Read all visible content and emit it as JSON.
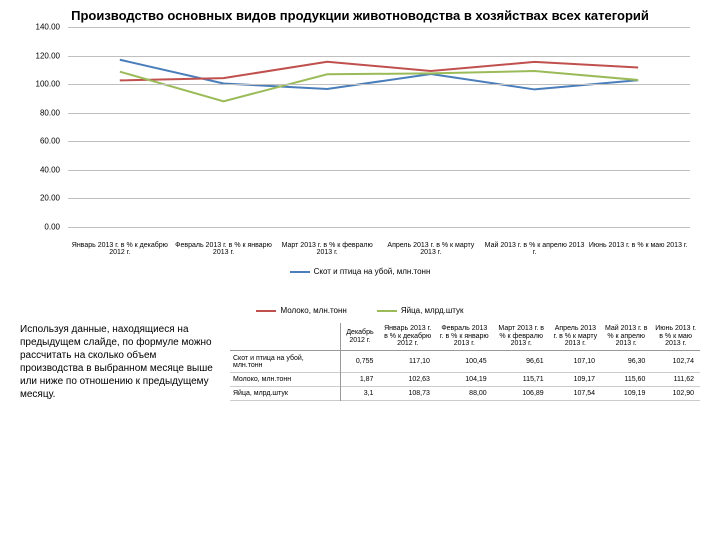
{
  "title": "Производство основных видов продукции животноводства\nв хозяйствах всех категорий",
  "chart": {
    "type": "line",
    "ylim": [
      0,
      140
    ],
    "ytick_step": 20,
    "yticks": [
      "0.00",
      "20.00",
      "40.00",
      "60.00",
      "80.00",
      "100.00",
      "120.00",
      "140.00"
    ],
    "grid_color": "#bfbfbf",
    "background_color": "#ffffff",
    "line_width": 2,
    "categories": [
      "Январь 2013 г. в % к декабрю 2012 г.",
      "Февраль 2013 г. в % к январю 2013 г.",
      "Март 2013 г. в % к февралю 2013 г.",
      "Апрель 2013 г. в % к марту 2013 г.",
      "Май 2013 г. в % к апрелю 2013 г.",
      "Июнь 2013 г. в % к маю 2013 г."
    ],
    "series": [
      {
        "name": "Скот и птица на убой, млн.тонн",
        "color": "#4a7ebb",
        "values": [
          117.1,
          100.45,
          96.61,
          107.1,
          96.3,
          102.74
        ]
      },
      {
        "name": "Молоко, млн.тонн",
        "color": "#c0504d",
        "values": [
          102.63,
          104.19,
          115.71,
          109.17,
          115.6,
          111.62
        ]
      },
      {
        "name": "Яйца, млрд.штук",
        "color": "#9bbb59",
        "values": [
          108.73,
          88.0,
          106.89,
          107.54,
          109.19,
          102.9
        ]
      }
    ]
  },
  "legend": {
    "row1": [
      {
        "label": "Скот и птица на убой, млн.тонн",
        "color": "#4a7ebb"
      }
    ],
    "row2": [
      {
        "label": "Молоко, млн.тонн",
        "color": "#c0504d"
      },
      {
        "label": "Яйца, млрд.штук",
        "color": "#9bbb59"
      }
    ]
  },
  "instruction": "Используя данные, находящиеся на предыдущем слайде, по формуле можно рассчитать на сколько объем производства в выбранном месяце выше или ниже по отношению к предыдущему месяцу.",
  "table": {
    "columns": [
      "",
      "Декабрь 2012 г.",
      "Январь 2013 г. в % к декабрю 2012 г.",
      "Февраль 2013 г. в % к январю 2013 г.",
      "Март 2013 г. в % к февралю 2013 г.",
      "Апрель 2013 г. в % к марту 2013 г.",
      "Май 2013 г. в % к апрелю 2013 г.",
      "Июнь 2013 г. в % к маю 2013 г."
    ],
    "rows": [
      [
        "Скот и птица на убой, млн.тонн",
        "0,755",
        "117,10",
        "100,45",
        "96,61",
        "107,10",
        "96,30",
        "102,74"
      ],
      [
        "Молоко, млн.тонн",
        "1,87",
        "102,63",
        "104,19",
        "115,71",
        "109,17",
        "115,60",
        "111,62"
      ],
      [
        "Яйца, млрд.штук",
        "3,1",
        "108,73",
        "88,00",
        "106,89",
        "107,54",
        "109,19",
        "102,90"
      ]
    ]
  }
}
